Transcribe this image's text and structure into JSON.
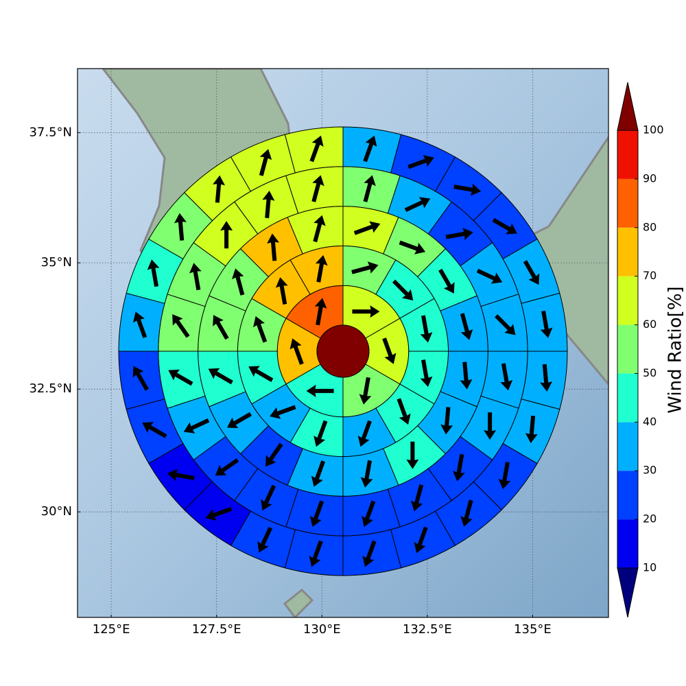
{
  "chart_data": {
    "type": "polar-map",
    "projection": "mercator",
    "xlim": [
      124.2,
      136.8
    ],
    "ylim": [
      27.8,
      38.7
    ],
    "xticks": [
      {
        "value": 125,
        "label": "125°E"
      },
      {
        "value": 127.5,
        "label": "127.5°E"
      },
      {
        "value": 130,
        "label": "130°E"
      },
      {
        "value": 132.5,
        "label": "132.5°E"
      },
      {
        "value": 135,
        "label": "135°E"
      }
    ],
    "yticks": [
      {
        "value": 30,
        "label": "30°N"
      },
      {
        "value": 32.5,
        "label": "32.5°N"
      },
      {
        "value": 35,
        "label": "35°N"
      },
      {
        "value": 37.5,
        "label": "37.5°N"
      }
    ],
    "grid": true,
    "center_value": 104,
    "rings": [
      {
        "values": [
          65,
          65,
          55,
          45,
          75,
          85
        ],
        "directions": [
          90,
          160,
          190,
          270,
          340,
          10
        ]
      },
      {
        "values": [
          55,
          45,
          45,
          45,
          45,
          35,
          45,
          35,
          45,
          55,
          75,
          75
        ],
        "directions": [
          75,
          135,
          170,
          170,
          160,
          200,
          200,
          250,
          300,
          340,
          350,
          10
        ]
      },
      {
        "values": [
          65,
          55,
          45,
          35,
          35,
          35,
          45,
          35,
          35,
          25,
          35,
          45,
          55,
          55,
          75,
          65
        ],
        "directions": [
          70,
          110,
          150,
          165,
          175,
          185,
          180,
          190,
          200,
          215,
          240,
          300,
          330,
          345,
          355,
          15
        ]
      },
      {
        "values": [
          55,
          35,
          25,
          35,
          35,
          35,
          35,
          25,
          25,
          25,
          25,
          25,
          25,
          35,
          45,
          55,
          55,
          65,
          65,
          65
        ],
        "directions": [
          15,
          65,
          80,
          115,
          135,
          170,
          180,
          190,
          195,
          200,
          200,
          205,
          235,
          245,
          300,
          325,
          350,
          0,
          5,
          15
        ]
      },
      {
        "values": [
          35,
          25,
          25,
          25,
          35,
          35,
          35,
          35,
          25,
          25,
          25,
          25,
          25,
          25,
          15,
          15,
          25,
          25,
          35,
          45,
          55,
          65,
          65,
          65
        ],
        "directions": [
          20,
          70,
          100,
          120,
          150,
          170,
          175,
          185,
          190,
          195,
          200,
          200,
          200,
          205,
          250,
          280,
          300,
          330,
          340,
          350,
          355,
          5,
          15,
          20
        ]
      }
    ],
    "colorbar": {
      "label": "Wind Ratio[%]",
      "ticks": [
        10,
        20,
        30,
        40,
        50,
        60,
        70,
        80,
        90,
        100
      ],
      "extend": "both",
      "colors": [
        "#00007f",
        "#0000f0",
        "#0040ff",
        "#00b0ff",
        "#20ffd0",
        "#80ff70",
        "#d0ff20",
        "#ffc000",
        "#ff6000",
        "#f01000",
        "#800000"
      ]
    }
  }
}
